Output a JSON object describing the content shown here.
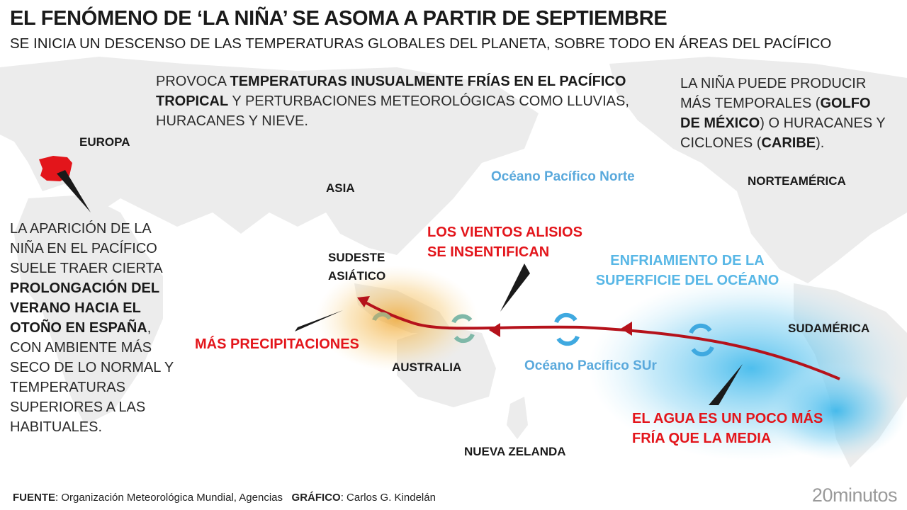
{
  "header": {
    "title": "EL FENÓMENO DE ‘LA NIÑA’ SE ASOMA A PARTIR DE SEPTIEMBRE",
    "subtitle": "SE INICIA UN DESCENSO DE LAS TEMPERATURAS GLOBALES DEL PLANETA, SOBRE TODO EN ÁREAS DEL PACÍFICO"
  },
  "notes": [
    {
      "segments": [
        {
          "text": "PROVOCA "
        },
        {
          "text": "TEMPERATURAS INUSUALMENTE FRÍAS EN EL PACÍFICO TROPICAL",
          "bold": true
        },
        {
          "text": " Y PERTURBACIONES METEOROLÓGICAS COMO LLUVIAS, HURACANES Y NIEVE."
        }
      ]
    },
    {
      "segments": [
        {
          "text": "LA NIÑA PUEDE PRODUCIR MÁS TEMPORALES ("
        },
        {
          "text": "GOLFO DE MÉXICO",
          "bold": true
        },
        {
          "text": ") O HURACANES Y CICLONES ("
        },
        {
          "text": "CARIBE",
          "bold": true
        },
        {
          "text": ")."
        }
      ]
    },
    {
      "segments": [
        {
          "text": "LA APARICIÓN DE LA NIÑA EN EL PACÍFICO SUELE TRAER CIERTA "
        },
        {
          "text": "PROLONGACIÓN DEL VERANO HACIA EL OTOÑO EN ESPAÑA",
          "bold": true
        },
        {
          "text": ", CON AMBIENTE MÁS SECO DE LO NORMAL Y TEMPERATURAS SUPERIORES A LAS HABITUALES."
        }
      ]
    }
  ],
  "places": {
    "europe": "EUROPA",
    "asia": "ASIA",
    "north_america": "NORTEAMÉRICA",
    "southeast_asia": "SUDESTE ASIÁTICO",
    "south_america": "SUDAMÉRICA",
    "australia": "AUSTRALIA",
    "new_zealand": "NUEVA ZELANDA"
  },
  "oceans": {
    "north_pacific": "Océano Pacífico Norte",
    "south_pacific": "Océano Pacífico SUr"
  },
  "callouts": {
    "trade_winds": "LOS VIENTOS ALISIOS SE INSENTIFICAN",
    "precipitation": "MÁS PRECIPITACIONES",
    "cooling": "ENFRIAMIENTO DE LA SUPERFICIE DEL OCÉANO",
    "water": "EL AGUA ES UN POCO MÁS FRÍA QUE LA MEDIA"
  },
  "footer": {
    "source_label": "FUENTE",
    "source": ": Organización Meteorológica Mundial, Agencias",
    "credit_label": "GRÁFICO",
    "credit": ": Carlos G. Kindelán",
    "brand": "20minutos"
  }
}
